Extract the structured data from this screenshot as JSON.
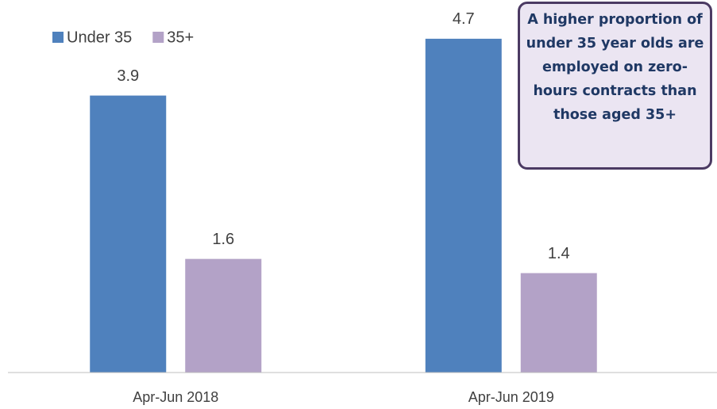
{
  "chart_data": {
    "type": "bar",
    "categories": [
      "Apr-Jun 2018",
      "Apr-Jun 2019"
    ],
    "series": [
      {
        "name": "Under 35",
        "color": "#4f81bd",
        "values": [
          3.9,
          4.7
        ]
      },
      {
        "name": "35+",
        "color": "#b3a2c7",
        "values": [
          1.6,
          1.4
        ]
      }
    ],
    "ylim": [
      0,
      5
    ],
    "annotation": "A higher proportion of under 35 year olds are employed on zero-hours contracts than those aged 35+"
  }
}
